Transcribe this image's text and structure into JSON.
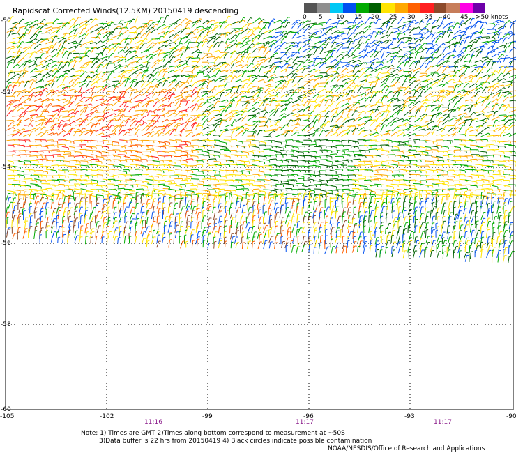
{
  "title": "Rapidscat Corrected Winds(12.5KM) 20150419 descending",
  "legend": {
    "colors": [
      "#555555",
      "#8f8f8f",
      "#00c8f5",
      "#0050f0",
      "#00aa00",
      "#005f00",
      "#ffe400",
      "#ffa800",
      "#ff6000",
      "#ff2020",
      "#8c4a2a",
      "#c77d5a",
      "#ff00e5",
      "#6d00a8"
    ],
    "labels": [
      "0",
      "5",
      "10",
      "15",
      "20",
      "25",
      "30",
      "35",
      "40",
      "45",
      ">50 knots"
    ]
  },
  "map": {
    "lon_range": [
      -105,
      -90
    ],
    "lat_range": [
      -50,
      -60
    ],
    "x_ticks": [
      "-105",
      "-102",
      "-99",
      "-96",
      "-93",
      "-90"
    ],
    "y_ticks": [
      "-50",
      "-52",
      "-54",
      "-56",
      "-58",
      "-60"
    ],
    "times": [
      "11:16",
      "11:17",
      "11:17"
    ],
    "grid": true
  },
  "notes": {
    "line1": "Note: 1) Times are GMT 2)Times along bottom correspond to measurement at ~50S",
    "line2": "3)Data buffer is 22 hrs from 20150419 4) Black circles indicate possible contamination",
    "line3": "NOAA/NESDIS/Office of Research and Applications"
  }
}
